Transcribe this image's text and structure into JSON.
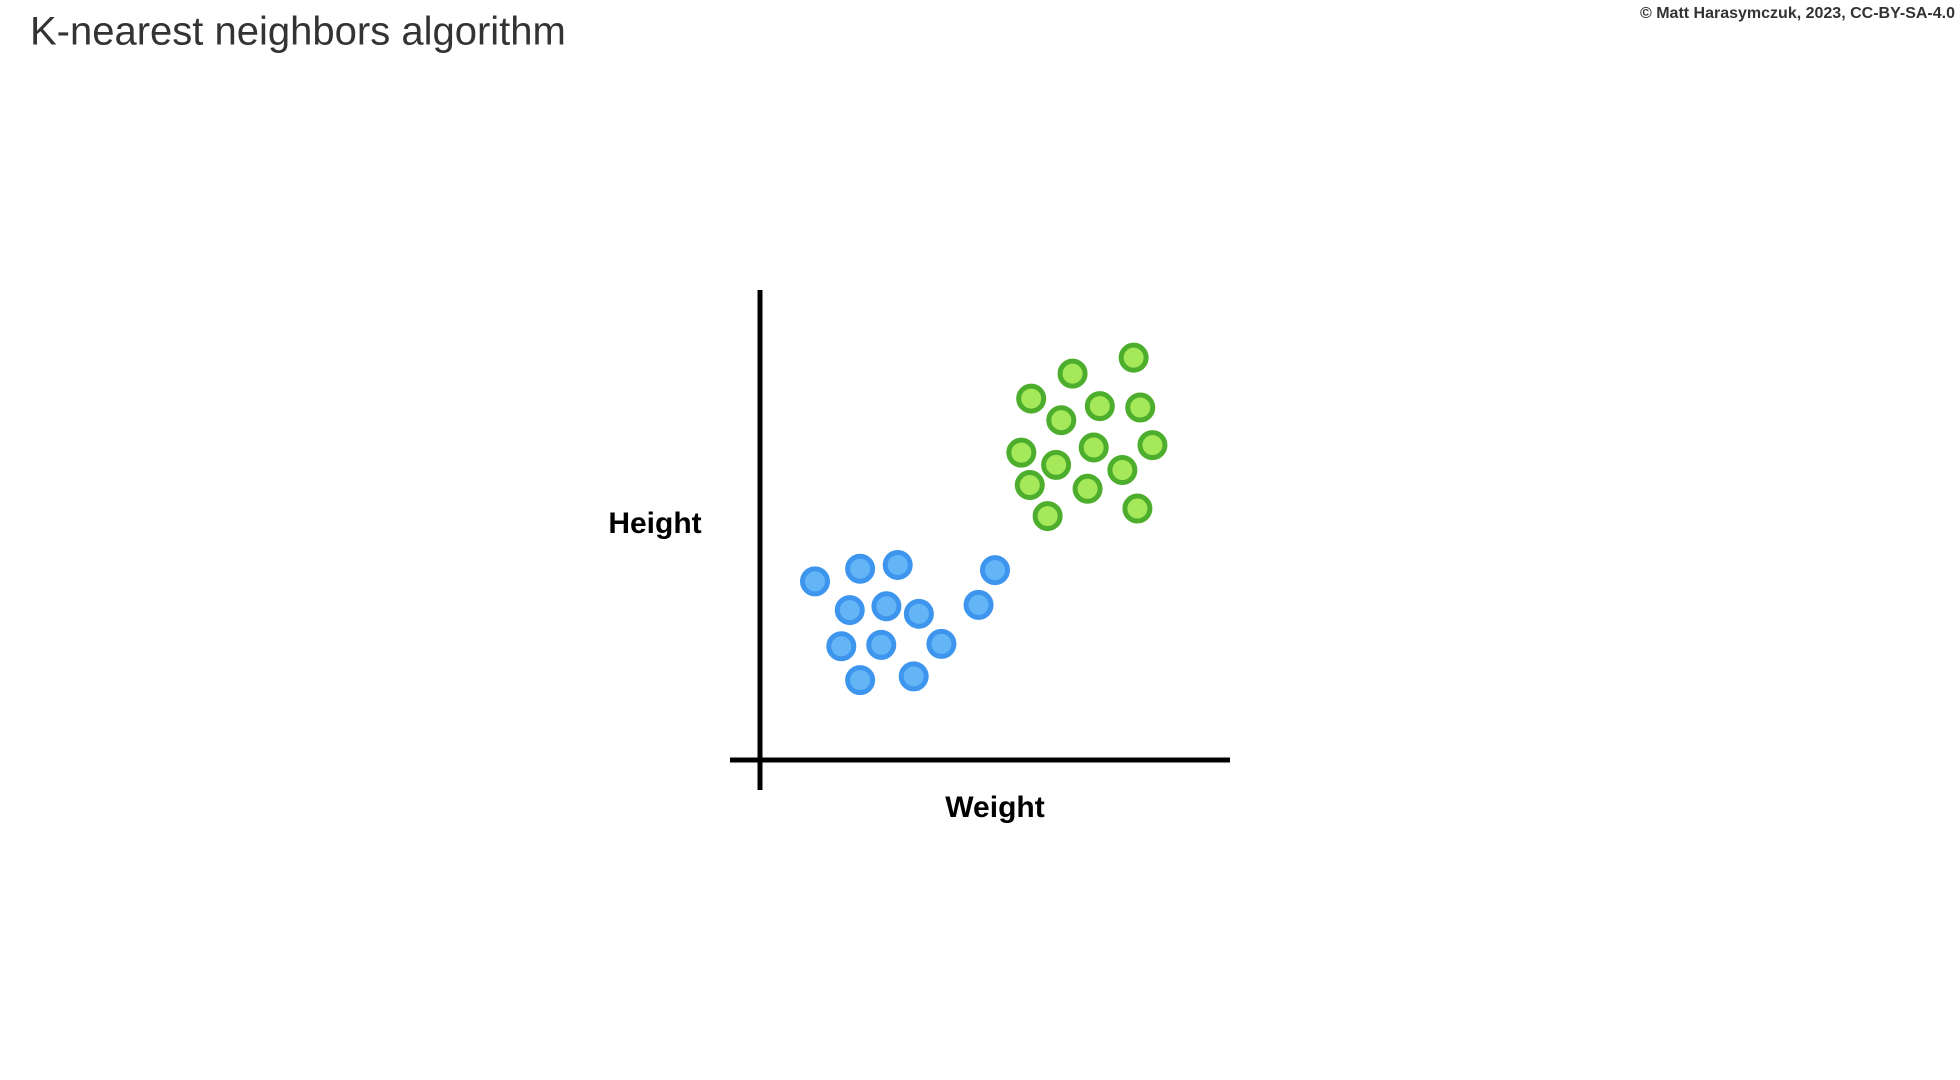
{
  "chart_data": {
    "type": "scatter",
    "title": "K-nearest neighbors algorithm",
    "credit": "© Matt Harasymczuk, 2023, CC-BY-SA-4.0",
    "x_label": "Weight",
    "y_label": "Height",
    "xlim": [
      0,
      100
    ],
    "ylim": [
      0,
      100
    ],
    "series": [
      {
        "color": "#64b5f6",
        "edge_color": "#3d95ee",
        "x": [
          11.7,
          21.3,
          29.3,
          50.0,
          19.1,
          26.9,
          33.8,
          46.5,
          17.3,
          25.8,
          38.6,
          21.3,
          32.7
        ],
        "values": [
          38.0,
          40.7,
          41.5,
          40.4,
          31.9,
          32.7,
          31.1,
          33.0,
          24.2,
          24.5,
          24.7,
          17.0,
          17.8
        ]
      },
      {
        "color": "#a5e85a",
        "edge_color": "#4cae2c",
        "x": [
          79.5,
          66.5,
          57.7,
          72.3,
          80.9,
          64.1,
          83.5,
          71.0,
          55.6,
          63.0,
          77.1,
          57.4,
          69.7,
          61.2,
          80.3
        ],
        "values": [
          85.6,
          82.2,
          76.9,
          75.3,
          75.0,
          72.3,
          67.0,
          66.5,
          65.4,
          62.8,
          61.7,
          58.5,
          57.7,
          51.9,
          53.5
        ]
      }
    ]
  }
}
